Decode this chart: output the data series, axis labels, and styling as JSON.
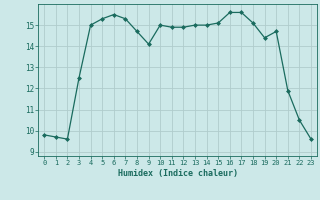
{
  "x": [
    0,
    1,
    2,
    3,
    4,
    5,
    6,
    7,
    8,
    9,
    10,
    11,
    12,
    13,
    14,
    15,
    16,
    17,
    18,
    19,
    20,
    21,
    22,
    23
  ],
  "y": [
    9.8,
    9.7,
    9.6,
    12.5,
    15.0,
    15.3,
    15.5,
    15.3,
    14.7,
    14.1,
    15.0,
    14.9,
    14.9,
    15.0,
    15.0,
    15.1,
    15.6,
    15.6,
    15.1,
    14.4,
    14.7,
    11.9,
    10.5,
    9.6
  ],
  "title": "",
  "xlabel": "Humidex (Indice chaleur)",
  "ylabel": "",
  "xlim": [
    -0.5,
    23.5
  ],
  "ylim": [
    8.8,
    16.0
  ],
  "yticks": [
    9,
    10,
    11,
    12,
    13,
    14,
    15
  ],
  "xticks": [
    0,
    1,
    2,
    3,
    4,
    5,
    6,
    7,
    8,
    9,
    10,
    11,
    12,
    13,
    14,
    15,
    16,
    17,
    18,
    19,
    20,
    21,
    22,
    23
  ],
  "line_color": "#1a6b5e",
  "marker": "D",
  "marker_size": 2.0,
  "bg_color": "#cce8e8",
  "grid_major_color": "#b0cccc",
  "grid_minor_color": "#c4dcdc",
  "font_color": "#1a6b5e",
  "tick_fontsize": 5.0,
  "xlabel_fontsize": 6.0
}
